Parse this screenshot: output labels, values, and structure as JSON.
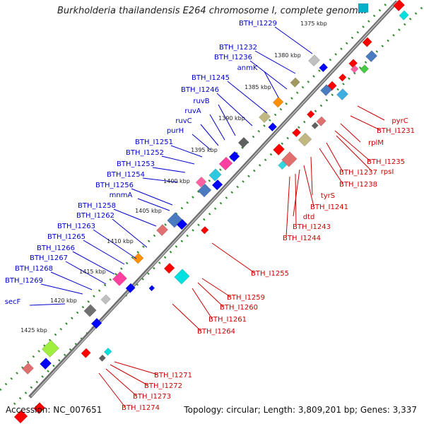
{
  "title": "Burkholderia thailandensis E264 chromosome I, complete genom...",
  "accession": "Accession: NC_007651",
  "topology": "Topology: circular; Length: 3,809,201 bp; Genes: 3,337",
  "colors": {
    "forward_label": "#0000cc",
    "reverse_label": "#cc0000",
    "backbone": "#777777",
    "tick_dots": "#2e8b2e",
    "cds_forward": "#0000ff",
    "cds_reverse": "#ff0000"
  },
  "scale_ticks": [
    "1375 kbp",
    "1380 kbp",
    "1385 kbp",
    "1390 kbp",
    "1395 kbp",
    "1400 kbp",
    "1405 kbp",
    "1410 kbp",
    "1415 kbp",
    "1420 kbp",
    "1425 kbp"
  ],
  "forward_labels": [
    "BTH_I1229",
    "BTH_I1232",
    "BTH_I1236",
    "anmK",
    "BTH_I1245",
    "BTH_I1246",
    "ruvB",
    "ruvA",
    "ruvC",
    "purH",
    "BTH_I1251",
    "BTH_I1252",
    "BTH_I1253",
    "BTH_I1254",
    "BTH_I1256",
    "mnmA",
    "BTH_I1258",
    "BTH_I1262",
    "BTH_I1263",
    "BTH_I1265",
    "BTH_I1266",
    "BTH_I1267",
    "BTH_I1268",
    "BTH_I1269",
    "secF"
  ],
  "reverse_labels": [
    "pyrC",
    "BTH_I1231",
    "rplM",
    "BTH_I1235",
    "rpsI",
    "BTH_I1237",
    "BTH_I1238",
    "tyrS",
    "BTH_I1241",
    "dtd",
    "BTH_I1243",
    "BTH_I1244",
    "BTH_I1255",
    "BTH_I1259",
    "BTH_I1260",
    "BTH_I1261",
    "BTH_I1264",
    "BTH_I1271",
    "BTH_I1272",
    "BTH_I1273",
    "BTH_I1274"
  ]
}
